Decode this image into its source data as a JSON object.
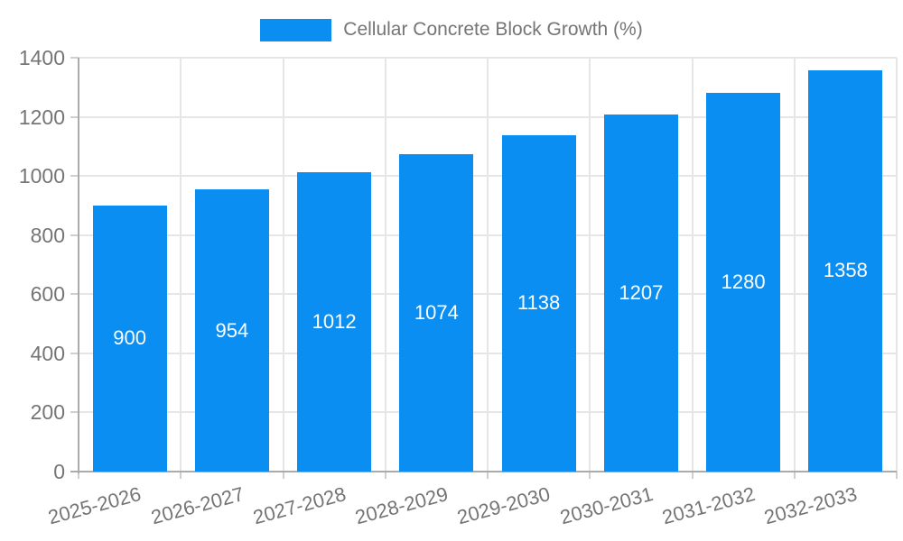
{
  "legend": {
    "label": "Cellular Concrete Block Growth (%)"
  },
  "chart_data": {
    "type": "bar",
    "title": "Cellular Concrete Block Growth (%)",
    "categories": [
      "2025-2026",
      "2026-2027",
      "2027-2028",
      "2028-2029",
      "2029-2030",
      "2030-2031",
      "2031-2032",
      "2032-2033"
    ],
    "values": [
      900,
      954,
      1012,
      1074,
      1138,
      1207,
      1280,
      1358
    ],
    "xlabel": "",
    "ylabel": "",
    "ylim": [
      0,
      1400
    ],
    "yticks": [
      0,
      200,
      400,
      600,
      800,
      1000,
      1200,
      1400
    ],
    "grid": true,
    "legend_position": "top",
    "bar_labels_shown": true,
    "colors": {
      "bar": "#0b8ef2",
      "bar_label": "#ffffff",
      "grid": "#e6e6e6",
      "axis_line": "#ababab",
      "tick": "#cfcfcf",
      "axis_text": "#757575"
    }
  }
}
